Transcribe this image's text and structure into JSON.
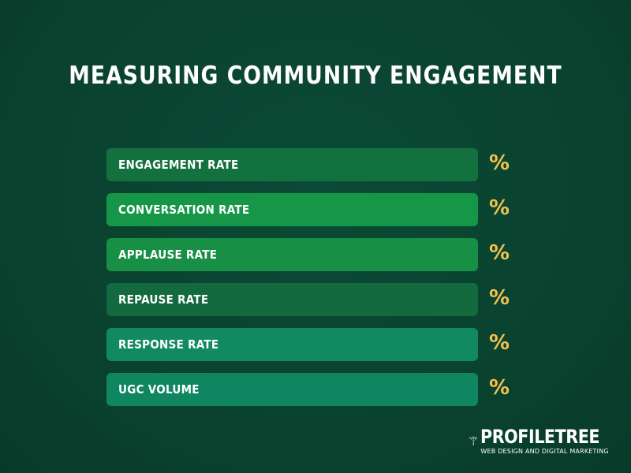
{
  "title": "MEASURING COMMUNITY ENGAGEMENT",
  "metrics": [
    {
      "label": "ENGAGEMENT RATE",
      "value": "%",
      "color": "#12713f"
    },
    {
      "label": "CONVERSATION RATE",
      "value": "%",
      "color": "#159747"
    },
    {
      "label": "APPLAUSE RATE",
      "value": "%",
      "color": "#178f45"
    },
    {
      "label": "REPAUSE RATE",
      "value": "%",
      "color": "#126a3e"
    },
    {
      "label": "RESPONSE RATE",
      "value": "%",
      "color": "#118a62"
    },
    {
      "label": "UGC VOLUME",
      "value": "%",
      "color": "#0f8560"
    }
  ],
  "value_color": "#f2c14e",
  "logo": {
    "name": "PROFILETREE",
    "tagline": "WEB DESIGN AND DIGITAL MARKETING",
    "icon": "tree-icon"
  }
}
